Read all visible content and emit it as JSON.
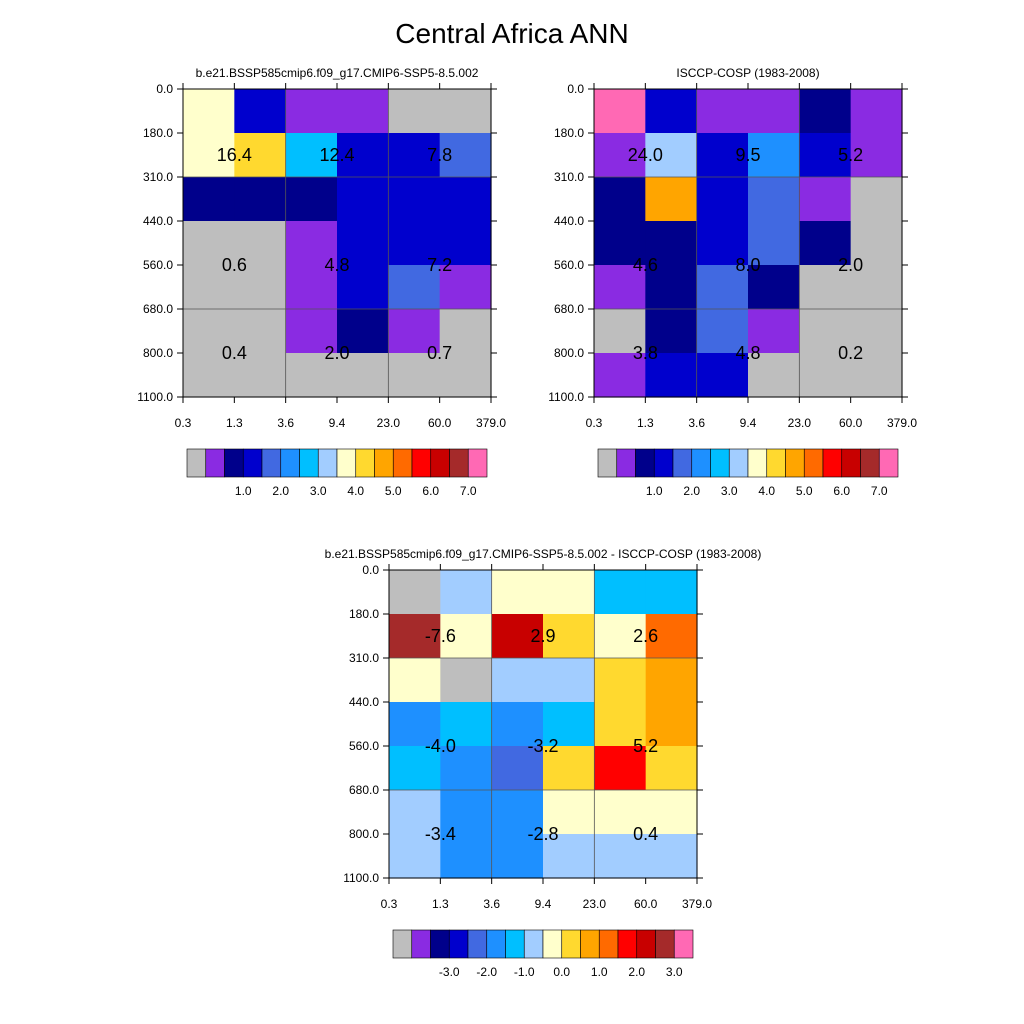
{
  "title": "Central Africa ANN",
  "chart_data": [
    {
      "type": "heatmap",
      "title": "b.e21.BSSP585cmip6.f09_g17.CMIP6-SSP5-8.5.002",
      "x_tick_labels": [
        "0.3",
        "1.3",
        "3.6",
        "9.4",
        "23.0",
        "60.0",
        "379.0"
      ],
      "y_tick_labels": [
        "0.0",
        "180.0",
        "310.0",
        "440.0",
        "560.0",
        "680.0",
        "800.0",
        "1100.0"
      ],
      "cell_colors": [
        [
          "#ffffcc",
          "#0000cd",
          "#8a2be2",
          "#8a2be2",
          "#bebebe",
          "#bebebe"
        ],
        [
          "#ffffcc",
          "#ffd92f",
          "#00bfff",
          "#0000cd",
          "#0000cd",
          "#4169e1"
        ],
        [
          "#00008b",
          "#00008b",
          "#00008b",
          "#0000cd",
          "#0000cd",
          "#0000cd"
        ],
        [
          "#bebebe",
          "#bebebe",
          "#8a2be2",
          "#0000cd",
          "#0000cd",
          "#0000cd"
        ],
        [
          "#bebebe",
          "#bebebe",
          "#8a2be2",
          "#0000cd",
          "#4169e1",
          "#8a2be2"
        ],
        [
          "#bebebe",
          "#bebebe",
          "#8a2be2",
          "#00008b",
          "#8a2be2",
          "#bebebe"
        ],
        [
          "#bebebe",
          "#bebebe",
          "#bebebe",
          "#bebebe",
          "#bebebe",
          "#bebebe"
        ]
      ],
      "block_labels": [
        [
          "16.4",
          "12.4",
          "7.8"
        ],
        [
          "0.6",
          "4.8",
          "7.2"
        ],
        [
          "0.4",
          "2.0",
          "0.7"
        ]
      ],
      "colorbar": {
        "colors": [
          "#bebebe",
          "#8a2be2",
          "#00008b",
          "#0000cd",
          "#4169e1",
          "#1e90ff",
          "#00bfff",
          "#a2cdff",
          "#ffffcc",
          "#ffd92f",
          "#ffa500",
          "#ff6a00",
          "#ff0000",
          "#c80000",
          "#a52a2a",
          "#ff69b4"
        ],
        "labels": [
          "1.0",
          "2.0",
          "3.0",
          "4.0",
          "5.0",
          "6.0",
          "7.0"
        ]
      }
    },
    {
      "type": "heatmap",
      "title": "ISCCP-COSP (1983-2008)",
      "x_tick_labels": [
        "0.3",
        "1.3",
        "3.6",
        "9.4",
        "23.0",
        "60.0",
        "379.0"
      ],
      "y_tick_labels": [
        "0.0",
        "180.0",
        "310.0",
        "440.0",
        "560.0",
        "680.0",
        "800.0",
        "1100.0"
      ],
      "cell_colors": [
        [
          "#ff69b4",
          "#0000cd",
          "#8a2be2",
          "#8a2be2",
          "#00008b",
          "#8a2be2"
        ],
        [
          "#8a2be2",
          "#a2cdff",
          "#0000cd",
          "#1e90ff",
          "#0000cd",
          "#8a2be2"
        ],
        [
          "#00008b",
          "#ffa500",
          "#0000cd",
          "#4169e1",
          "#8a2be2",
          "#bebebe"
        ],
        [
          "#00008b",
          "#00008b",
          "#0000cd",
          "#4169e1",
          "#00008b",
          "#bebebe"
        ],
        [
          "#8a2be2",
          "#00008b",
          "#4169e1",
          "#00008b",
          "#bebebe",
          "#bebebe"
        ],
        [
          "#bebebe",
          "#00008b",
          "#4169e1",
          "#8a2be2",
          "#bebebe",
          "#bebebe"
        ],
        [
          "#8a2be2",
          "#0000cd",
          "#0000cd",
          "#bebebe",
          "#bebebe",
          "#bebebe"
        ]
      ],
      "block_labels": [
        [
          "24.0",
          "9.5",
          "5.2"
        ],
        [
          "4.6",
          "8.0",
          "2.0"
        ],
        [
          "3.8",
          "4.8",
          "0.2"
        ]
      ],
      "colorbar": {
        "colors": [
          "#bebebe",
          "#8a2be2",
          "#00008b",
          "#0000cd",
          "#4169e1",
          "#1e90ff",
          "#00bfff",
          "#a2cdff",
          "#ffffcc",
          "#ffd92f",
          "#ffa500",
          "#ff6a00",
          "#ff0000",
          "#c80000",
          "#a52a2a",
          "#ff69b4"
        ],
        "labels": [
          "1.0",
          "2.0",
          "3.0",
          "4.0",
          "5.0",
          "6.0",
          "7.0"
        ]
      }
    },
    {
      "type": "heatmap",
      "title": "b.e21.BSSP585cmip6.f09_g17.CMIP6-SSP5-8.5.002 - ISCCP-COSP (1983-2008)",
      "x_tick_labels": [
        "0.3",
        "1.3",
        "3.6",
        "9.4",
        "23.0",
        "60.0",
        "379.0"
      ],
      "y_tick_labels": [
        "0.0",
        "180.0",
        "310.0",
        "440.0",
        "560.0",
        "680.0",
        "800.0",
        "1100.0"
      ],
      "cell_colors": [
        [
          "#bebebe",
          "#a2cdff",
          "#ffffcc",
          "#ffffcc",
          "#00bfff",
          "#00bfff"
        ],
        [
          "#a52a2a",
          "#ffffcc",
          "#c80000",
          "#ffd92f",
          "#ffffcc",
          "#ff6a00"
        ],
        [
          "#ffffcc",
          "#bebebe",
          "#a2cdff",
          "#a2cdff",
          "#ffd92f",
          "#ffa500"
        ],
        [
          "#1e90ff",
          "#00bfff",
          "#1e90ff",
          "#00bfff",
          "#ffd92f",
          "#ffa500"
        ],
        [
          "#00bfff",
          "#1e90ff",
          "#4169e1",
          "#ffd92f",
          "#ff0000",
          "#ffd92f"
        ],
        [
          "#a2cdff",
          "#1e90ff",
          "#1e90ff",
          "#ffffcc",
          "#ffffcc",
          "#ffffcc"
        ],
        [
          "#a2cdff",
          "#1e90ff",
          "#1e90ff",
          "#a2cdff",
          "#a2cdff",
          "#a2cdff"
        ]
      ],
      "block_labels": [
        [
          "-7.6",
          "2.9",
          "2.6"
        ],
        [
          "-4.0",
          "-3.2",
          "5.2"
        ],
        [
          "-3.4",
          "-2.8",
          "0.4"
        ]
      ],
      "colorbar": {
        "colors": [
          "#bebebe",
          "#8a2be2",
          "#00008b",
          "#0000cd",
          "#4169e1",
          "#1e90ff",
          "#00bfff",
          "#a2cdff",
          "#ffffcc",
          "#ffd92f",
          "#ffa500",
          "#ff6a00",
          "#ff0000",
          "#c80000",
          "#a52a2a",
          "#ff69b4"
        ],
        "labels": [
          "-3.0",
          "-2.0",
          "-1.0",
          "0.0",
          "1.0",
          "2.0",
          "3.0"
        ]
      }
    }
  ]
}
